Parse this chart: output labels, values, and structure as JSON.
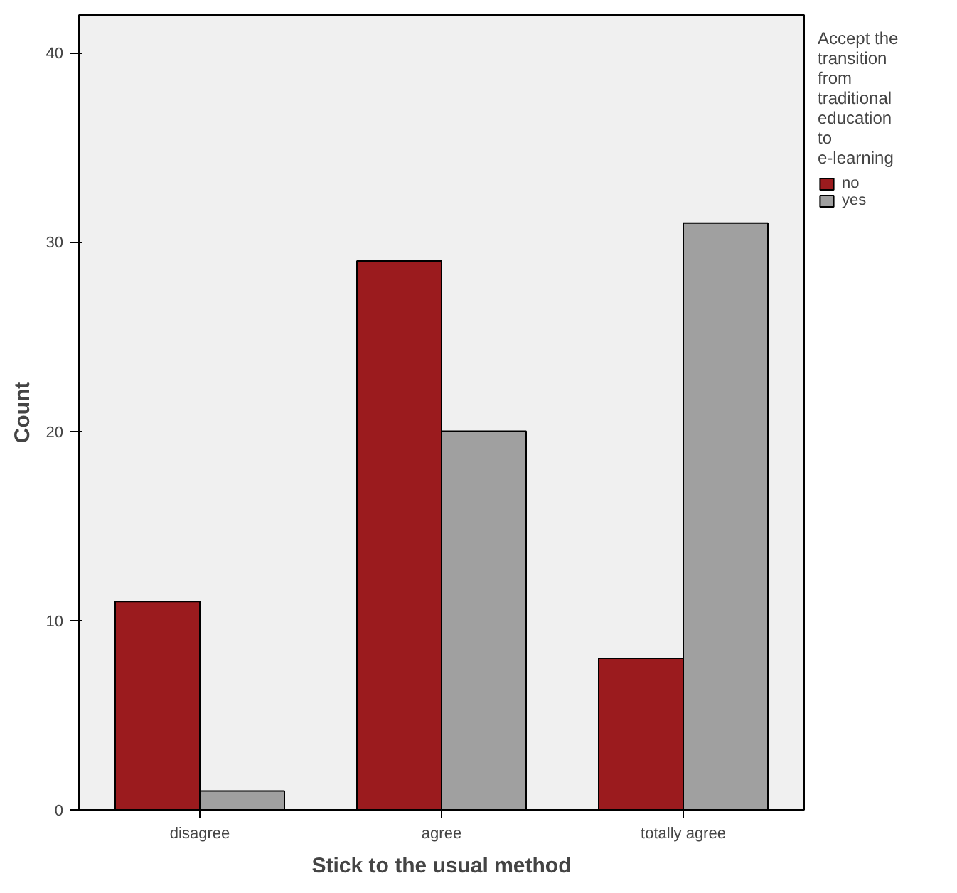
{
  "chart_data": {
    "type": "bar",
    "xlabel": "Stick to the usual method",
    "ylabel": "Count",
    "legend_title": "Accept the transition from traditional education to e-learning",
    "categories": [
      "disagree",
      "agree",
      "totally agree"
    ],
    "series": [
      {
        "name": "no",
        "color": "#9b1b1e",
        "values": [
          11,
          29,
          8
        ]
      },
      {
        "name": "yes",
        "color": "#a0a0a0",
        "values": [
          1,
          20,
          31
        ]
      }
    ],
    "ylim": [
      0,
      42
    ],
    "yticks": [
      0,
      10,
      20,
      30,
      40
    ],
    "grid": false,
    "legend": "right"
  }
}
